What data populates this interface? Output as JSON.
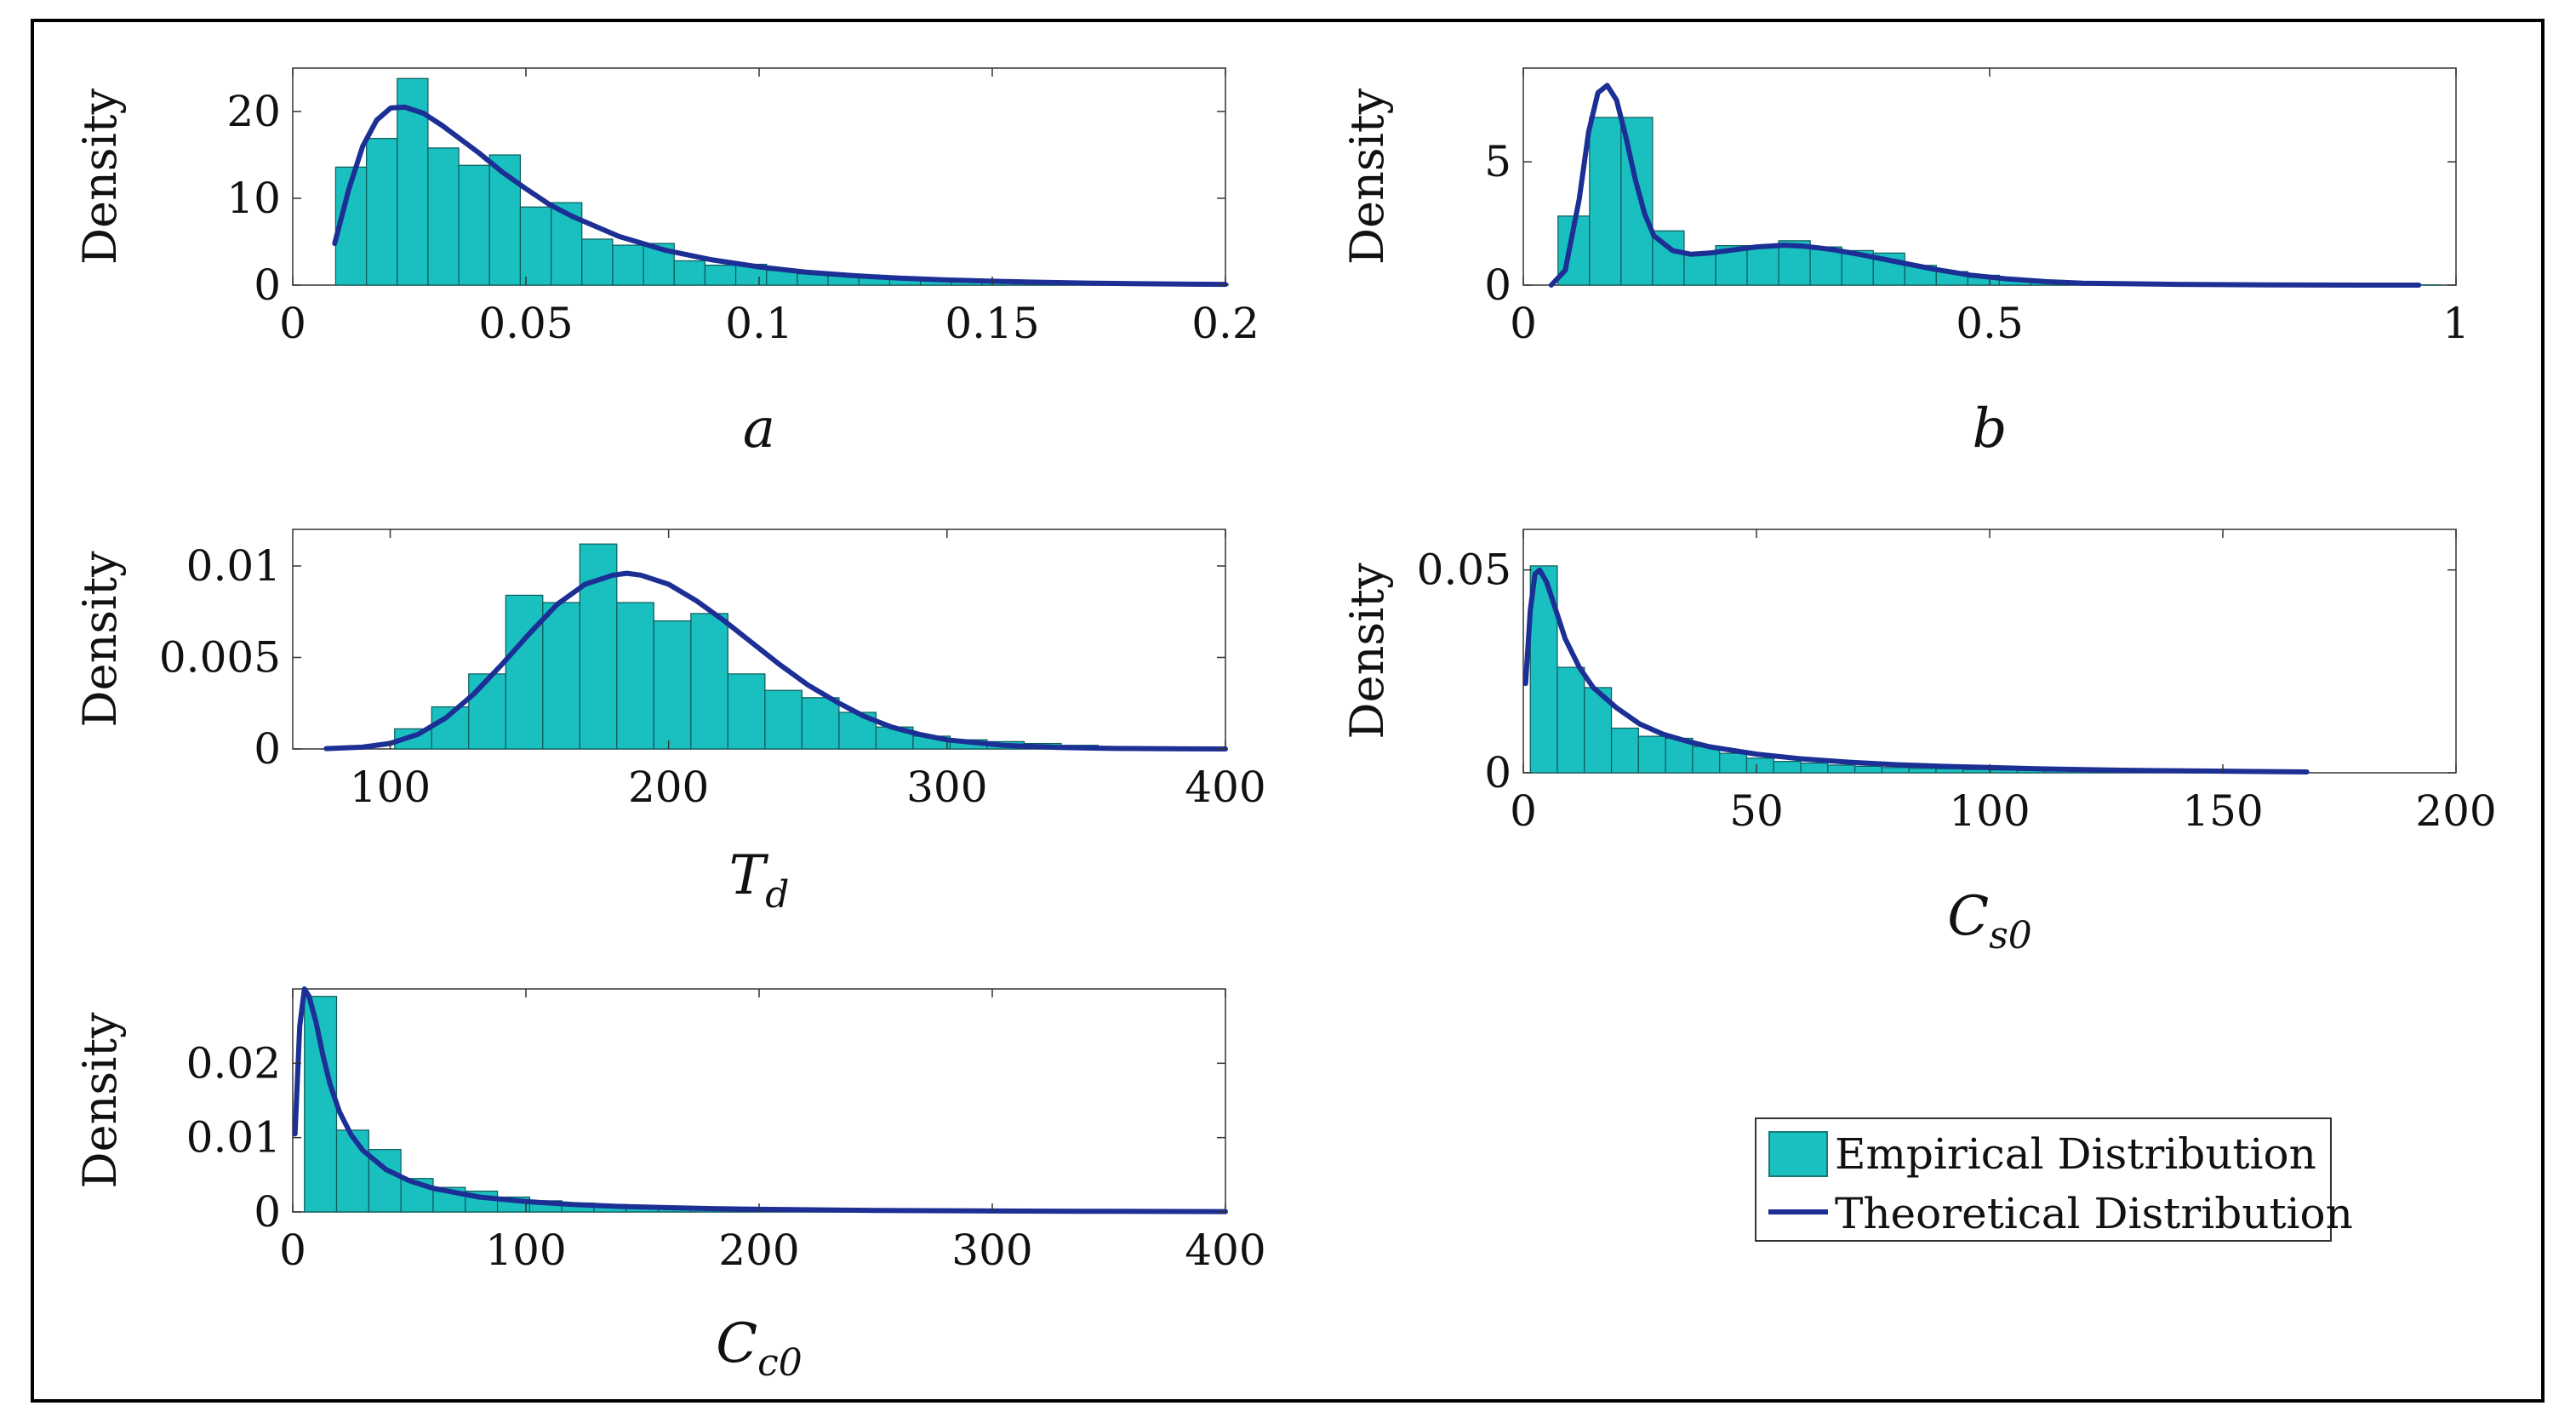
{
  "legend": {
    "empirical_label": "Empirical Distribution",
    "theoretical_label": "Theoretical Distribution"
  },
  "colors": {
    "bar_fill": "#1ABFC0",
    "bar_stroke": "#0c5a5a",
    "curve": "#1C2F95",
    "axis": "#333333"
  },
  "chart_data": [
    {
      "type": "bar",
      "id": "a",
      "title": "",
      "ylabel": "Density",
      "xlabel": "a",
      "xlim": [
        0,
        0.2
      ],
      "ylim": [
        0,
        25
      ],
      "xticks": [
        0,
        0.05,
        0.1,
        0.15,
        0.2
      ],
      "xtick_labels": [
        "0",
        "0.05",
        "0.1",
        "0.15",
        "0.2"
      ],
      "yticks": [
        0,
        10,
        20
      ],
      "ytick_labels": [
        "0",
        "10",
        "20"
      ],
      "bin_width": 0.0066,
      "bin_starts": [
        0.0092,
        0.0158,
        0.0224,
        0.029,
        0.0356,
        0.0422,
        0.0488,
        0.0554,
        0.062,
        0.0686,
        0.0752,
        0.0818,
        0.0884,
        0.095,
        0.1016,
        0.1082,
        0.1148,
        0.1214,
        0.128,
        0.1346,
        0.1412,
        0.1478,
        0.1544,
        0.161,
        0.1676,
        0.1742,
        0.1808,
        0.1874,
        0.194
      ],
      "values": [
        13.6,
        16.9,
        23.8,
        15.8,
        13.8,
        15.0,
        9.0,
        9.5,
        5.3,
        4.6,
        4.8,
        2.8,
        2.3,
        2.4,
        1.7,
        1.3,
        1.1,
        0.9,
        0.8,
        0.7,
        0.5,
        0.4,
        0.35,
        0.3,
        0.25,
        0.2,
        0.15,
        0.1,
        0.08
      ],
      "curve": {
        "x": [
          0.009,
          0.012,
          0.015,
          0.018,
          0.021,
          0.024,
          0.028,
          0.032,
          0.036,
          0.04,
          0.045,
          0.05,
          0.055,
          0.06,
          0.07,
          0.08,
          0.09,
          0.1,
          0.11,
          0.12,
          0.13,
          0.14,
          0.15,
          0.16,
          0.17,
          0.18,
          0.19,
          0.2
        ],
        "y": [
          4.8,
          11.0,
          16.0,
          19.0,
          20.4,
          20.5,
          19.8,
          18.4,
          16.8,
          15.2,
          13.0,
          11.1,
          9.3,
          7.9,
          5.6,
          4.0,
          2.9,
          2.1,
          1.5,
          1.1,
          0.8,
          0.6,
          0.45,
          0.33,
          0.24,
          0.17,
          0.12,
          0.09
        ]
      }
    },
    {
      "type": "bar",
      "id": "b",
      "title": "",
      "ylabel": "Density",
      "xlabel": "b",
      "xlim": [
        0,
        1
      ],
      "ylim": [
        0,
        8.8
      ],
      "xticks": [
        0,
        0.5,
        1
      ],
      "xtick_labels": [
        "0",
        "0.5",
        "1"
      ],
      "yticks": [
        0,
        5
      ],
      "ytick_labels": [
        "0",
        "5"
      ],
      "bin_width": 0.0338,
      "bin_starts": [
        0.0372,
        0.071,
        0.1048,
        0.1386,
        0.1724,
        0.2062,
        0.24,
        0.2738,
        0.3076,
        0.3414,
        0.3752,
        0.409,
        0.4428,
        0.4766,
        0.5104,
        0.5442,
        0.578,
        0.6118,
        0.6456,
        0.6794,
        0.7132,
        0.747,
        0.7808,
        0.8146,
        0.8484,
        0.8822,
        0.916,
        0.9498
      ],
      "values": [
        2.8,
        6.8,
        6.8,
        2.2,
        1.3,
        1.6,
        1.6,
        1.8,
        1.55,
        1.4,
        1.3,
        0.8,
        0.55,
        0.4,
        0.25,
        0.15,
        0.1,
        0.07,
        0.05,
        0.04,
        0.03,
        0.02,
        0.02,
        0.01,
        0.01,
        0.01,
        0.01,
        0.01
      ],
      "curve": {
        "x": [
          0.03,
          0.045,
          0.06,
          0.07,
          0.08,
          0.09,
          0.1,
          0.11,
          0.12,
          0.13,
          0.14,
          0.16,
          0.18,
          0.2,
          0.22,
          0.25,
          0.28,
          0.3,
          0.33,
          0.36,
          0.4,
          0.44,
          0.48,
          0.52,
          0.56,
          0.6,
          0.7,
          0.8,
          0.9,
          0.96
        ],
        "y": [
          0.0,
          0.6,
          3.5,
          6.2,
          7.8,
          8.1,
          7.5,
          6.0,
          4.3,
          2.9,
          2.0,
          1.4,
          1.25,
          1.3,
          1.4,
          1.55,
          1.62,
          1.58,
          1.45,
          1.25,
          0.95,
          0.65,
          0.4,
          0.25,
          0.14,
          0.08,
          0.03,
          0.01,
          0.0,
          0.0
        ]
      }
    },
    {
      "type": "bar",
      "id": "Td",
      "title": "",
      "ylabel": "Density",
      "xlabel": "T_d",
      "xlim": [
        65,
        400
      ],
      "ylim": [
        0,
        0.012
      ],
      "xticks": [
        100,
        200,
        300,
        400
      ],
      "xtick_labels": [
        "100",
        "200",
        "300",
        "400"
      ],
      "yticks": [
        0,
        0.005,
        0.01
      ],
      "ytick_labels": [
        "0",
        "0.005",
        "0.01"
      ],
      "bin_width": 13.3,
      "bin_starts": [
        75,
        88.3,
        101.6,
        114.9,
        128.2,
        141.5,
        154.8,
        168.1,
        181.4,
        194.7,
        208,
        221.3,
        234.6,
        247.9,
        261.2,
        274.5,
        287.8,
        301.1,
        314.4,
        327.7,
        341,
        354.3,
        367.6,
        380.9
      ],
      "values": [
        0.0,
        0.0,
        0.0011,
        0.0023,
        0.0041,
        0.0084,
        0.008,
        0.0112,
        0.008,
        0.007,
        0.0074,
        0.0041,
        0.0032,
        0.0028,
        0.002,
        0.0012,
        0.0007,
        0.0005,
        0.0004,
        0.0003,
        0.0002,
        0.0001,
        0.0001,
        0.0
      ],
      "curve": {
        "x": [
          77,
          90,
          100,
          110,
          120,
          130,
          140,
          150,
          160,
          170,
          180,
          185,
          190,
          200,
          210,
          220,
          230,
          240,
          250,
          260,
          270,
          280,
          290,
          300,
          320,
          340,
          360,
          380,
          400
        ],
        "y": [
          2e-05,
          0.0001,
          0.0003,
          0.0008,
          0.0017,
          0.003,
          0.0046,
          0.0063,
          0.0079,
          0.009,
          0.0095,
          0.0096,
          0.0095,
          0.009,
          0.0081,
          0.007,
          0.0058,
          0.0046,
          0.0035,
          0.0026,
          0.0018,
          0.0012,
          0.0008,
          0.0005,
          0.0002,
          8e-05,
          3e-05,
          1e-05,
          0.0
        ]
      }
    },
    {
      "type": "bar",
      "id": "Cs0",
      "title": "",
      "ylabel": "Density",
      "xlabel": "C_s0",
      "xlim": [
        0,
        200
      ],
      "ylim": [
        0,
        0.06
      ],
      "xticks": [
        0,
        50,
        100,
        150,
        200
      ],
      "xtick_labels": [
        "0",
        "50",
        "100",
        "150",
        "200"
      ],
      "yticks": [
        0,
        0.05
      ],
      "ytick_labels": [
        "0",
        "0.05"
      ],
      "bin_width": 5.8,
      "bin_starts": [
        1.5,
        7.3,
        13.1,
        18.9,
        24.7,
        30.5,
        36.3,
        42.1,
        47.9,
        53.7,
        59.5,
        65.3,
        71.1,
        76.9,
        82.7,
        88.5,
        94.3,
        100.1,
        105.9,
        111.7,
        117.5,
        123.3,
        129.1,
        134.9,
        140.7,
        146.5,
        152.3,
        158.1
      ],
      "values": [
        0.051,
        0.026,
        0.021,
        0.011,
        0.009,
        0.0085,
        0.0065,
        0.0048,
        0.0036,
        0.0028,
        0.0024,
        0.0019,
        0.0016,
        0.0013,
        0.0011,
        0.001,
        0.0008,
        0.0007,
        0.0006,
        0.0005,
        0.0004,
        0.0003,
        0.0003,
        0.0002,
        0.0002,
        0.0001,
        0.0001,
        0.0001
      ],
      "curve": {
        "x": [
          0.5,
          1.5,
          2.5,
          3.5,
          5,
          7,
          9,
          12,
          15,
          20,
          25,
          30,
          35,
          40,
          50,
          60,
          70,
          80,
          90,
          100,
          110,
          120,
          130,
          140,
          150,
          160,
          168
        ],
        "y": [
          0.022,
          0.04,
          0.049,
          0.05,
          0.047,
          0.04,
          0.033,
          0.026,
          0.021,
          0.016,
          0.012,
          0.0095,
          0.0078,
          0.0064,
          0.0046,
          0.0034,
          0.0026,
          0.002,
          0.0016,
          0.0013,
          0.001,
          0.0008,
          0.0006,
          0.0005,
          0.0004,
          0.0003,
          0.0002
        ]
      }
    },
    {
      "type": "bar",
      "id": "Cc0",
      "title": "",
      "ylabel": "Density",
      "xlabel": "C_c0",
      "xlim": [
        0,
        400
      ],
      "ylim": [
        0,
        0.03
      ],
      "xticks": [
        0,
        100,
        200,
        300,
        400
      ],
      "xtick_labels": [
        "0",
        "100",
        "200",
        "300",
        "400"
      ],
      "yticks": [
        0,
        0.01,
        0.02
      ],
      "ytick_labels": [
        "0",
        "0.01",
        "0.02"
      ],
      "bin_width": 13.8,
      "bin_starts": [
        5,
        18.8,
        32.6,
        46.4,
        60.2,
        74,
        87.8,
        101.6,
        115.4,
        129.2,
        143,
        156.8,
        170.6,
        184.4,
        198.2,
        212,
        225.8,
        239.6,
        253.4,
        267.2,
        281,
        294.8,
        308.6,
        322.4,
        336.2,
        350,
        363.8,
        377.6
      ],
      "values": [
        0.029,
        0.011,
        0.0084,
        0.0045,
        0.0033,
        0.0028,
        0.002,
        0.0015,
        0.0012,
        0.001,
        0.0008,
        0.0007,
        0.0006,
        0.0005,
        0.0004,
        0.00035,
        0.0003,
        0.00025,
        0.0002,
        0.00018,
        0.00015,
        0.00013,
        0.00011,
        0.0001,
        8e-05,
        7e-05,
        6e-05,
        5e-05
      ],
      "curve": {
        "x": [
          1,
          3,
          5,
          7,
          10,
          13,
          16,
          20,
          25,
          30,
          40,
          50,
          60,
          80,
          100,
          120,
          140,
          160,
          180,
          200,
          250,
          300,
          350,
          400
        ],
        "y": [
          0.0105,
          0.025,
          0.03,
          0.029,
          0.0255,
          0.021,
          0.0172,
          0.0135,
          0.0104,
          0.0083,
          0.0057,
          0.0042,
          0.0032,
          0.002,
          0.0014,
          0.001,
          0.00075,
          0.00058,
          0.00045,
          0.00036,
          0.0002,
          0.00013,
          8e-05,
          5e-05
        ]
      }
    }
  ]
}
